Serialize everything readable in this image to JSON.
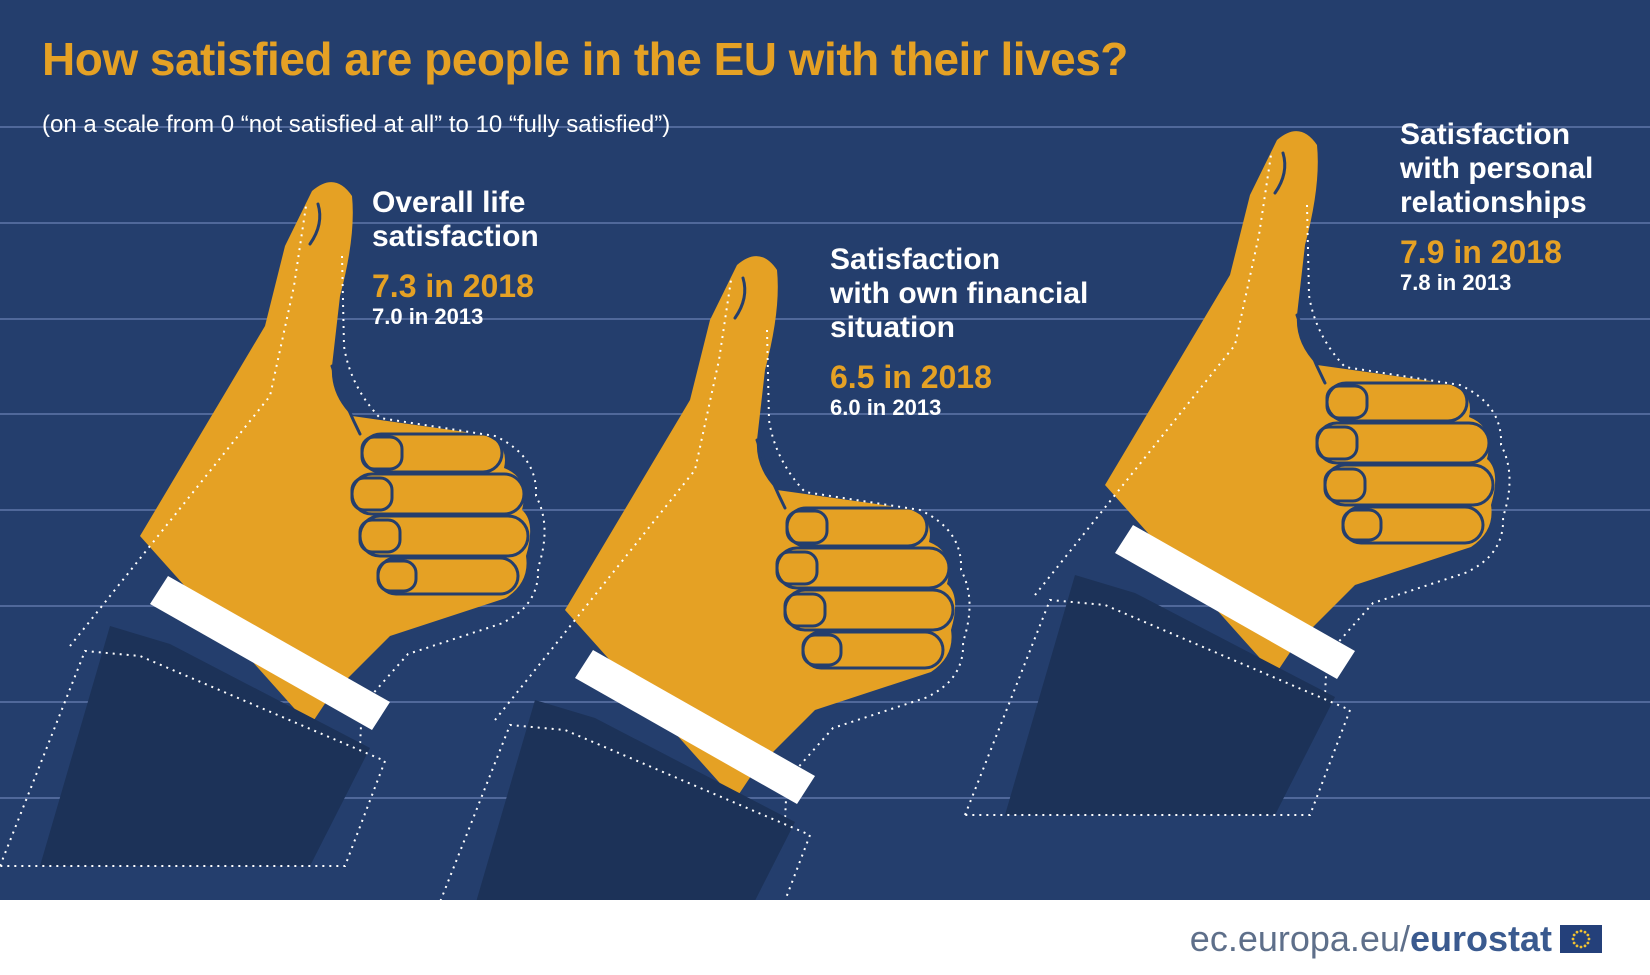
{
  "title": "How satisfied are people in the EU with their lives?",
  "subtitle": "(on a scale from 0 “not satisfied at all” to 10 “fully satisfied”)",
  "footer": {
    "url_prefix": "ec.europa.eu/",
    "url_brand": "eurostat"
  },
  "colors": {
    "background": "#243e6d",
    "hand": "#e5a124",
    "sleeve": "#1c3258",
    "cuff": "#ffffff",
    "accent_text": "#e5a124"
  },
  "icons": {
    "hand": "thumbs-up-icon",
    "logo": "eu-flag-icon"
  },
  "chart_data": {
    "type": "bar",
    "title": "How satisfied are people in the EU with their lives?",
    "subtitle": "(on a scale from 0 “not satisfied at all” to 10 “fully satisfied”)",
    "categories": [
      "Overall life satisfaction",
      "Satisfaction with own financial situation",
      "Satisfaction with personal relationships"
    ],
    "series": [
      {
        "name": "2018",
        "values": [
          7.3,
          6.5,
          7.9
        ]
      },
      {
        "name": "2013",
        "values": [
          7.0,
          6.0,
          7.8
        ]
      }
    ],
    "ylim": [
      0,
      10
    ],
    "items": [
      {
        "caption_lines": [
          "Overall life",
          "satisfaction"
        ],
        "value_2018_label": "7.3 in 2018",
        "value_2013_label": "7.0 in 2013"
      },
      {
        "caption_lines": [
          "Satisfaction",
          "with own financial",
          "situation"
        ],
        "value_2018_label": "6.5 in 2018",
        "value_2013_label": "6.0 in 2013"
      },
      {
        "caption_lines": [
          "Satisfaction",
          "with personal",
          "relationships"
        ],
        "value_2018_label": "7.9 in 2018",
        "value_2013_label": "7.8 in 2013"
      }
    ]
  }
}
